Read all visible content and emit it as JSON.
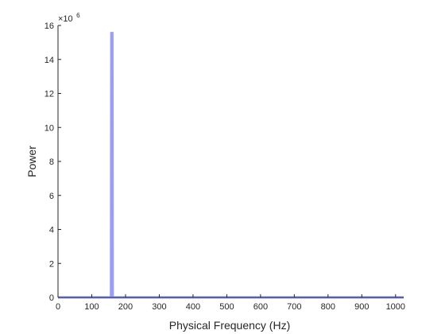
{
  "chart_data": {
    "type": "line",
    "title": "",
    "xlabel": "Physical Frequency (Hz)",
    "ylabel": "Power",
    "xlim": [
      0,
      1024
    ],
    "ylim": [
      0,
      16000000
    ],
    "x_ticks": [
      0,
      100,
      200,
      300,
      400,
      500,
      600,
      700,
      800,
      900,
      1000
    ],
    "y_ticks": [
      0,
      2,
      4,
      6,
      8,
      10,
      12,
      14,
      16
    ],
    "y_tick_labels": [
      "0",
      "2",
      "4",
      "6",
      "8",
      "10",
      "12",
      "14",
      "16"
    ],
    "x_tick_labels": [
      "0",
      "100",
      "200",
      "300",
      "400",
      "500",
      "600",
      "700",
      "800",
      "900",
      "1000"
    ],
    "y_exponent_base": "×10",
    "y_exponent_power": "6",
    "grid": false,
    "series": [
      {
        "color": "#9a9ef5",
        "x": [
          0,
          157,
          158,
          159,
          160,
          161,
          162,
          1024
        ],
        "y": [
          0,
          0,
          15550000,
          15550000,
          15550000,
          15550000,
          0,
          0
        ]
      }
    ]
  }
}
